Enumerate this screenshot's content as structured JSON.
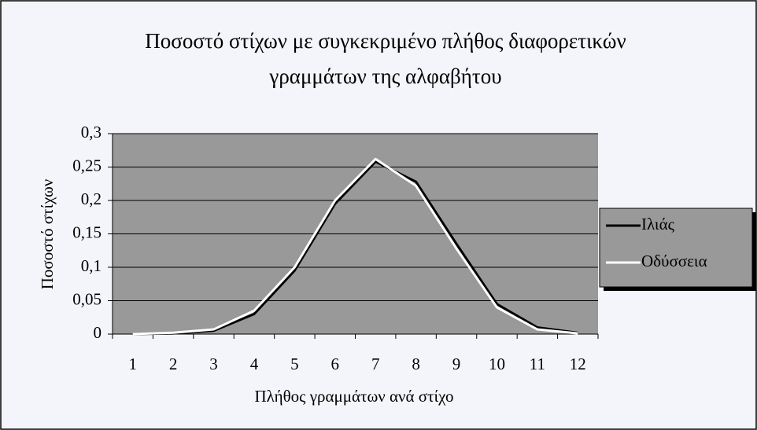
{
  "chart_data": {
    "type": "line",
    "title": [
      "Ποσοστό στίχων με συγκεκριμένο πλήθος διαφορετικών",
      "γραμμάτων της αλφαβήτου"
    ],
    "x_label": "Πλήθος γραμμάτων ανά στίχο",
    "y_label": "Ποσοστό στίχων",
    "categories": [
      "1",
      "2",
      "3",
      "4",
      "5",
      "6",
      "7",
      "8",
      "9",
      "10",
      "11",
      "12"
    ],
    "series": [
      {
        "name": "Ιλιάς",
        "color": "#000000",
        "values": [
          0,
          0.001,
          0.005,
          0.03,
          0.095,
          0.195,
          0.258,
          0.228,
          0.135,
          0.045,
          0.01,
          0.002
        ]
      },
      {
        "name": "Οδύσσεια",
        "color": "#ffffff",
        "values": [
          0,
          0.002,
          0.007,
          0.035,
          0.1,
          0.2,
          0.262,
          0.222,
          0.128,
          0.04,
          0.007,
          0.001
        ]
      }
    ],
    "ylim": [
      0,
      0.3
    ],
    "yticks": [
      0,
      {
        "value": 0.05,
        "label": "0,05"
      },
      {
        "value": 0.1,
        "label": "0,1"
      },
      {
        "value": 0.15,
        "label": "0,15"
      },
      {
        "value": 0.2,
        "label": "0,2"
      },
      {
        "value": 0.25,
        "label": "0,25"
      },
      {
        "value": 0.3,
        "label": "0,3"
      }
    ],
    "grid": true,
    "legend": "right",
    "plot_background": "#999999"
  }
}
